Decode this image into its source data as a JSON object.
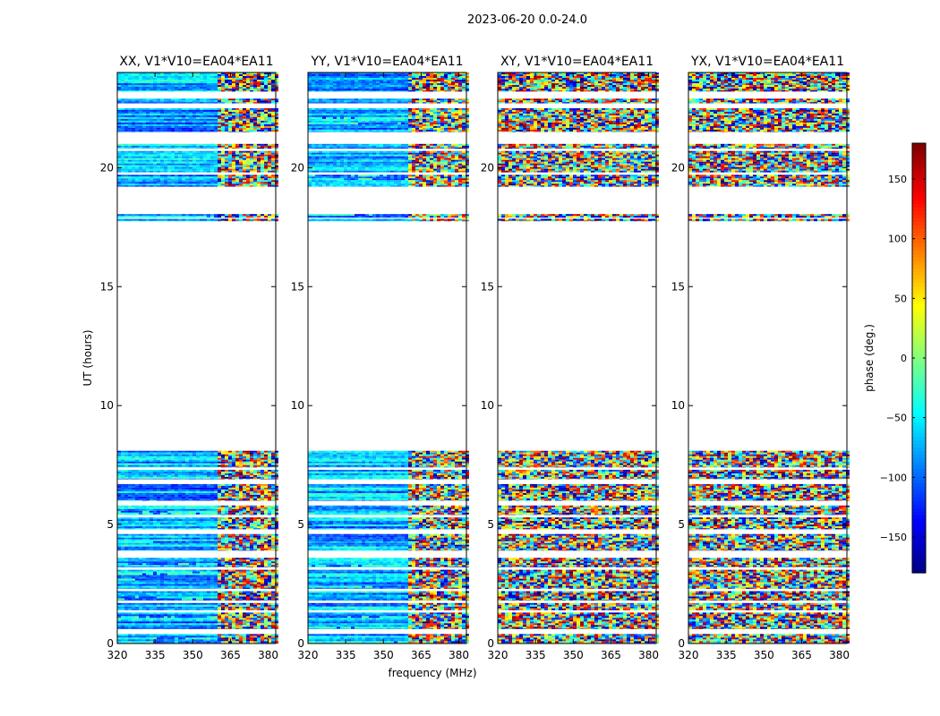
{
  "chart_data": {
    "type": "heatmap",
    "suptitle": "2023-06-20 0.0-24.0",
    "xlabel": "frequency (MHz)",
    "ylabel": "UT (hours)",
    "xlim": [
      320,
      383
    ],
    "ylim": [
      0,
      24
    ],
    "xticks": [
      320,
      335,
      350,
      365,
      380
    ],
    "yticks": [
      0,
      5,
      10,
      15,
      20
    ],
    "colormap": "jet",
    "colorbar": {
      "label": "phase (deg.)",
      "range": [
        -180,
        180
      ],
      "ticks": [
        -150,
        -100,
        -50,
        0,
        50,
        100,
        150
      ],
      "tick_labels": [
        "−150",
        "−100",
        "−50",
        "0",
        "50",
        "100",
        "150"
      ]
    },
    "panels": [
      {
        "title": "XX, V1*V10=EA04*EA11",
        "pol": "XX"
      },
      {
        "title": "YY, V1*V10=EA04*EA11",
        "pol": "YY"
      },
      {
        "title": "XY, V1*V10=EA04*EA11",
        "pol": "XY"
      },
      {
        "title": "YX, V1*V10=EA04*EA11",
        "pol": "YX"
      }
    ],
    "data_time_ranges_hours": [
      [
        0.0,
        0.4
      ],
      [
        0.6,
        1.3
      ],
      [
        1.4,
        1.7
      ],
      [
        1.8,
        2.2
      ],
      [
        2.3,
        3.1
      ],
      [
        3.2,
        3.6
      ],
      [
        3.9,
        4.6
      ],
      [
        4.8,
        5.3
      ],
      [
        5.4,
        5.8
      ],
      [
        6.0,
        6.7
      ],
      [
        6.9,
        7.3
      ],
      [
        7.4,
        8.1
      ],
      [
        17.75,
        17.85
      ],
      [
        17.9,
        18.05
      ],
      [
        19.2,
        19.7
      ],
      [
        19.8,
        20.7
      ],
      [
        20.8,
        21.0
      ],
      [
        21.5,
        22.5
      ],
      [
        22.7,
        22.9
      ],
      [
        23.2,
        24.0
      ]
    ]
  }
}
